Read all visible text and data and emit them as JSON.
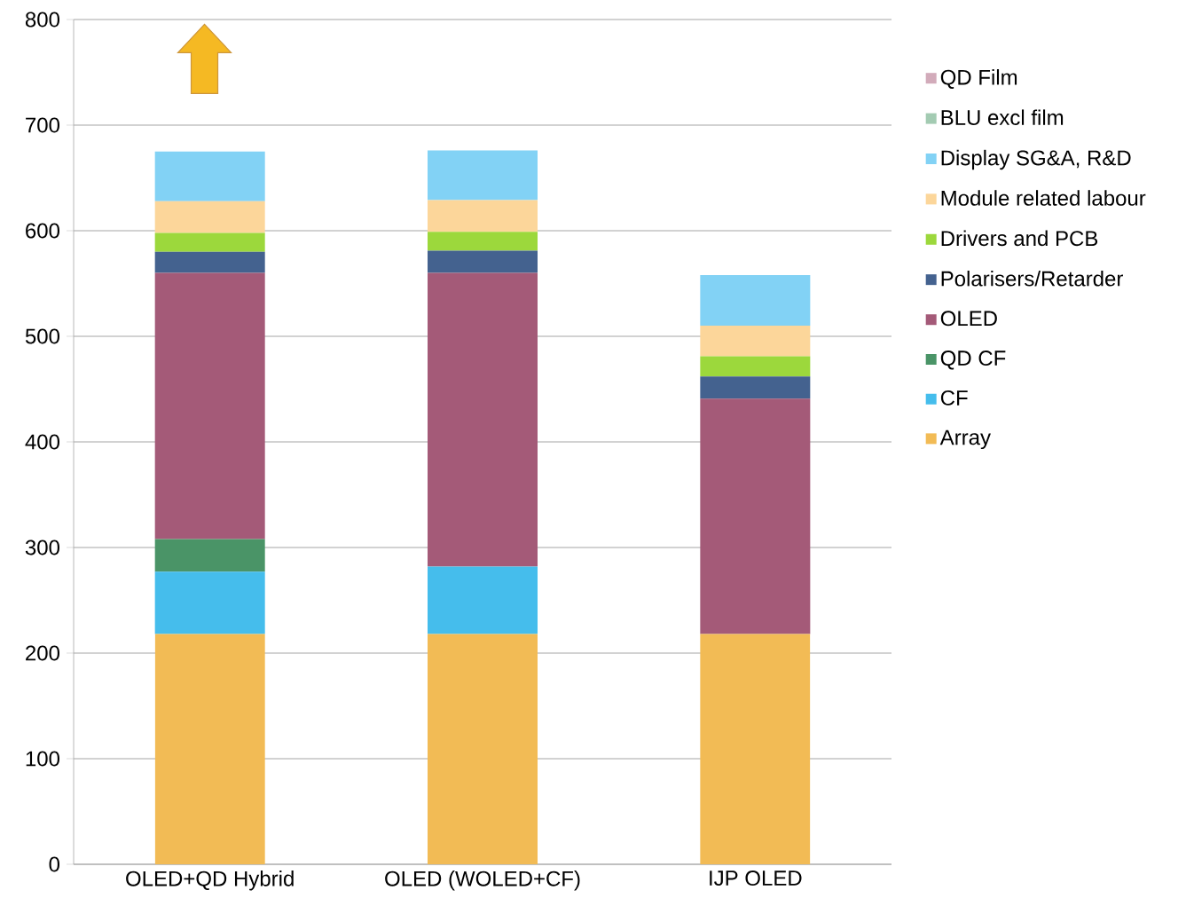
{
  "chart_data": {
    "type": "bar",
    "stacked": true,
    "categories": [
      "OLED+QD Hybrid",
      "OLED (WOLED+CF)",
      "IJP OLED"
    ],
    "ylim": [
      0,
      800
    ],
    "yticks": [
      0,
      100,
      200,
      300,
      400,
      500,
      600,
      700,
      800
    ],
    "grid": "y",
    "legend": "right",
    "series": [
      {
        "name": "Array",
        "color": "#f2bb55",
        "values": [
          218,
          218,
          218
        ]
      },
      {
        "name": "CF",
        "color": "#45bdec",
        "values": [
          59,
          64,
          0
        ]
      },
      {
        "name": "QD CF",
        "color": "#4a9467",
        "values": [
          31,
          0,
          0
        ]
      },
      {
        "name": "OLED",
        "color": "#a45a78",
        "values": [
          252,
          278,
          223
        ]
      },
      {
        "name": "Polarisers/Retarder",
        "color": "#44628f",
        "values": [
          20,
          21,
          21
        ]
      },
      {
        "name": "Drivers and PCB",
        "color": "#9cd83c",
        "values": [
          18,
          18,
          19
        ]
      },
      {
        "name": "Module related labour",
        "color": "#fcd69a",
        "values": [
          30,
          30,
          29
        ]
      },
      {
        "name": "Display SG&A, R&D",
        "color": "#82d2f5",
        "values": [
          47,
          47,
          48
        ]
      },
      {
        "name": "BLU excl film",
        "color": "#a3cbb2",
        "values": [
          0,
          0,
          0
        ]
      },
      {
        "name": "QD Film",
        "color": "#d2abba",
        "values": [
          0,
          0,
          0
        ]
      }
    ]
  }
}
